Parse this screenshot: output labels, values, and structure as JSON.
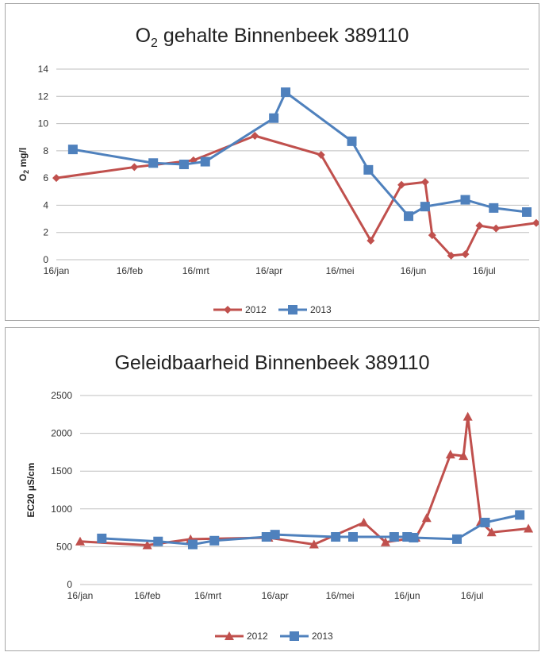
{
  "chart_data": [
    {
      "type": "line",
      "title_prefix": "O",
      "title_sub": "2",
      "title_rest": " gehalte Binnenbeek 389110",
      "ylabel_prefix": "O",
      "ylabel_sub": "2",
      "ylabel_rest": " mg/l",
      "xlabel": "",
      "ylim": [
        0,
        14
      ],
      "yticks": [
        0,
        2,
        4,
        6,
        8,
        10,
        12,
        14
      ],
      "xlim": [
        0,
        200
      ],
      "xticks": [
        {
          "label": "16/jan",
          "x": 0
        },
        {
          "label": "16/feb",
          "x": 31
        },
        {
          "label": "16/mrt",
          "x": 59
        },
        {
          "label": "16/apr",
          "x": 90
        },
        {
          "label": "16/mei",
          "x": 120
        },
        {
          "label": "16/jun",
          "x": 151
        },
        {
          "label": "16/jul",
          "x": 181
        }
      ],
      "grid": true,
      "legend_position": "bottom",
      "series": [
        {
          "name": "2012",
          "color": "#c0504d",
          "marker": "diamond",
          "points": [
            [
              0,
              6.0
            ],
            [
              33,
              6.8
            ],
            [
              58,
              7.3
            ],
            [
              84,
              9.1
            ],
            [
              112,
              7.7
            ],
            [
              133,
              1.4
            ],
            [
              146,
              5.5
            ],
            [
              156,
              5.7
            ],
            [
              159,
              1.8
            ],
            [
              167,
              0.3
            ],
            [
              173,
              0.4
            ],
            [
              179,
              2.5
            ],
            [
              186,
              2.3
            ],
            [
              203,
              2.7
            ]
          ]
        },
        {
          "name": "2013",
          "color": "#4f81bd",
          "marker": "square",
          "points": [
            [
              7,
              8.1
            ],
            [
              41,
              7.1
            ],
            [
              54,
              7.0
            ],
            [
              63,
              7.2
            ],
            [
              92,
              10.4
            ],
            [
              97,
              12.3
            ],
            [
              125,
              8.7
            ],
            [
              132,
              6.6
            ],
            [
              149,
              3.2
            ],
            [
              156,
              3.9
            ],
            [
              173,
              4.4
            ],
            [
              185,
              3.8
            ],
            [
              199,
              3.5
            ]
          ]
        }
      ]
    },
    {
      "type": "line",
      "title": "Geleidbaarheid  Binnenbeek  389110",
      "ylabel": "EC20 µS/cm",
      "xlabel": "",
      "ylim": [
        0,
        2500
      ],
      "yticks": [
        0,
        500,
        1000,
        1500,
        2000,
        2500
      ],
      "xlim": [
        0,
        200
      ],
      "xticks": [
        {
          "label": "16/jan",
          "x": 0
        },
        {
          "label": "16/feb",
          "x": 31
        },
        {
          "label": "16/mrt",
          "x": 59
        },
        {
          "label": "16/apr",
          "x": 90
        },
        {
          "label": "16/mei",
          "x": 120
        },
        {
          "label": "16/jun",
          "x": 151
        },
        {
          "label": "16/jul",
          "x": 181
        }
      ],
      "grid": true,
      "legend_position": "bottom",
      "series": [
        {
          "name": "2012",
          "color": "#c0504d",
          "marker": "triangle",
          "points": [
            [
              0,
              570
            ],
            [
              31,
              520
            ],
            [
              51,
              600
            ],
            [
              87,
              620
            ],
            [
              108,
              530
            ],
            [
              131,
              820
            ],
            [
              141,
              560
            ],
            [
              155,
              620
            ],
            [
              160,
              880
            ],
            [
              171,
              1720
            ],
            [
              177,
              1700
            ],
            [
              179,
              2220
            ],
            [
              185,
              830
            ],
            [
              190,
              690
            ],
            [
              207,
              740
            ]
          ]
        },
        {
          "name": "2013",
          "color": "#4f81bd",
          "marker": "square",
          "points": [
            [
              10,
              610
            ],
            [
              36,
              570
            ],
            [
              52,
              530
            ],
            [
              62,
              580
            ],
            [
              86,
              630
            ],
            [
              90,
              660
            ],
            [
              118,
              630
            ],
            [
              126,
              630
            ],
            [
              145,
              630
            ],
            [
              151,
              630
            ],
            [
              154,
              620
            ],
            [
              174,
              600
            ],
            [
              187,
              820
            ],
            [
              203,
              920
            ]
          ]
        }
      ]
    }
  ]
}
